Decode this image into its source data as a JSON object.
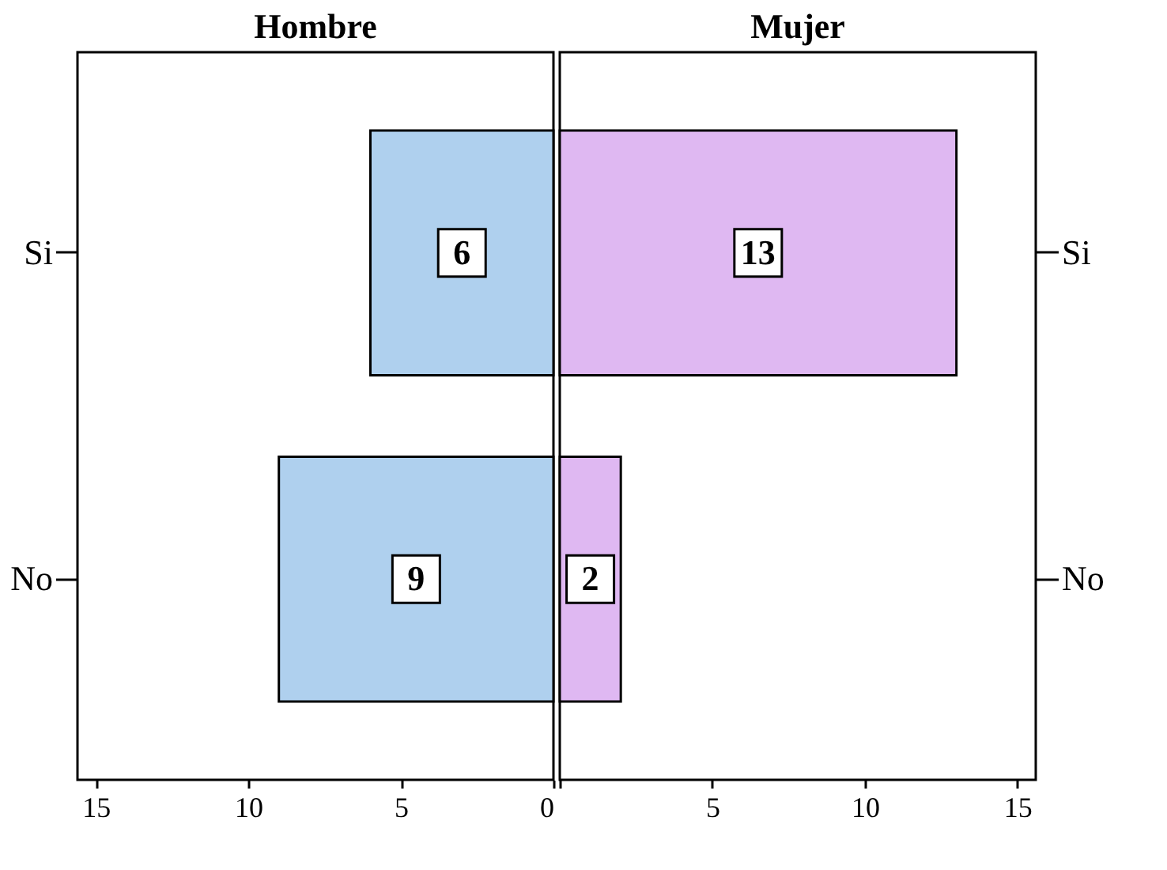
{
  "chart_data": [
    {
      "type": "bar",
      "orientation": "horizontal",
      "title": "Hombre",
      "categories": [
        "Si",
        "No"
      ],
      "values": [
        6,
        9
      ],
      "color": "#afd0ee",
      "xlim": [
        15.6,
        0
      ],
      "xticks": [
        15,
        10,
        5,
        0
      ],
      "data_labels": true,
      "grid": false
    },
    {
      "type": "bar",
      "orientation": "horizontal",
      "title": "Mujer",
      "categories": [
        "Si",
        "No"
      ],
      "values": [
        13,
        2
      ],
      "color": "#dfb8f2",
      "xlim": [
        0,
        15.6
      ],
      "xticks": [
        {
          "value": 0,
          "label": null
        },
        5,
        10,
        15
      ],
      "data_labels": true,
      "grid": false
    }
  ]
}
